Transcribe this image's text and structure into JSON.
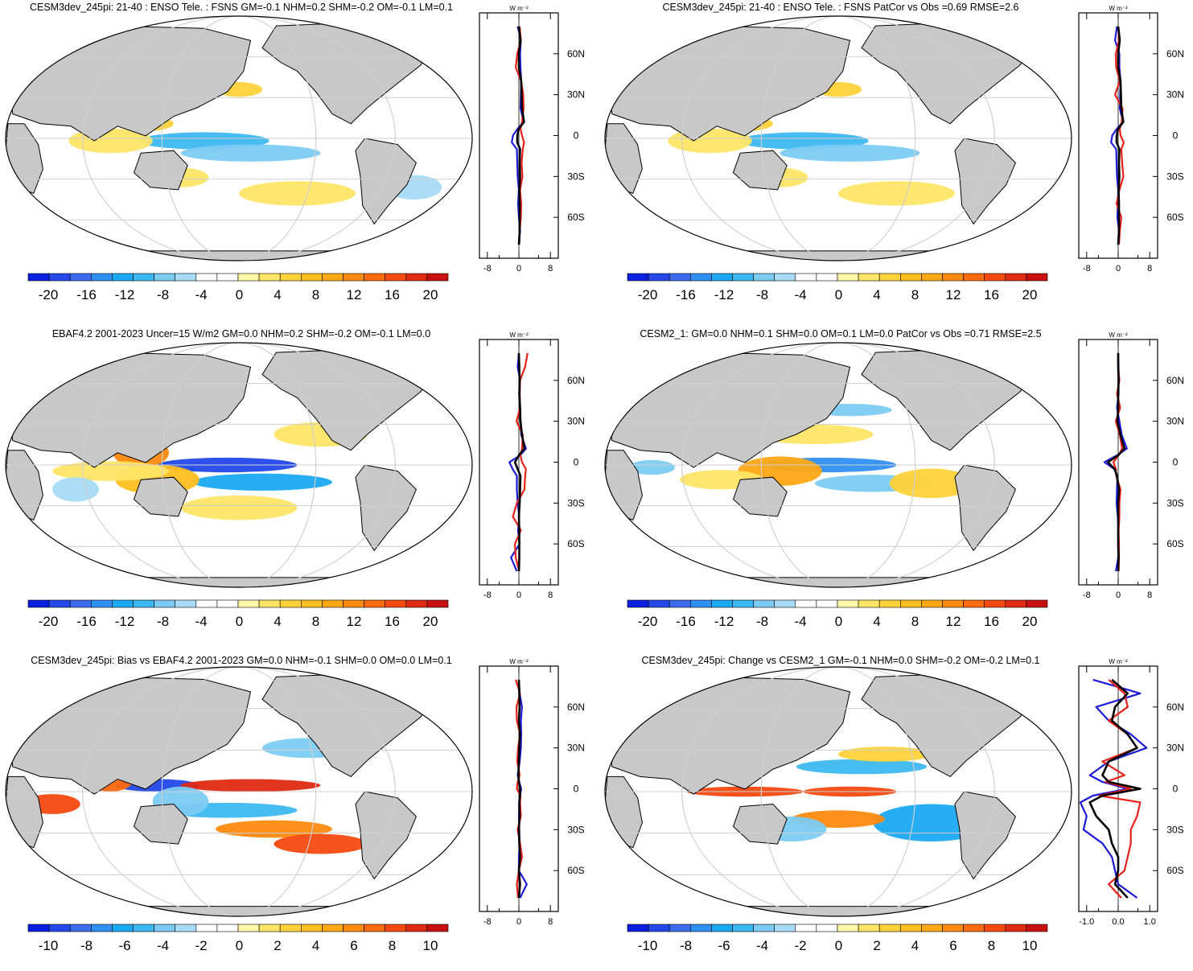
{
  "colors": {
    "land": "#c8c8c8",
    "ocean": "#ffffff",
    "coast": "#000000",
    "grid": "#cfcfcf",
    "series_blue": "#1b1bd8",
    "series_red": "#e8201a",
    "series_black": "#000000",
    "colorbar": [
      "#0a1fe0",
      "#2448ea",
      "#3c6cee",
      "#2f8ff2",
      "#1aa9f2",
      "#3cb8f0",
      "#7ccbf2",
      "#a8dbf5",
      "#ffffff",
      "#ffffff",
      "#fff8a8",
      "#ffe566",
      "#ffd23a",
      "#ffbf1f",
      "#ffa814",
      "#ff8a10",
      "#ff6a0e",
      "#f54a10",
      "#e02a12",
      "#c81010"
    ]
  },
  "panels": [
    {
      "id": "p1",
      "title": "CESM3dev_245pi: 21-40 : ENSO Tele. : FSNS GM=-0.1 NHM=0.2 SHM=-0.2 OM=-0.1 LM=0.1",
      "colorbar_labels": [
        "-20",
        "-16",
        "-12",
        "-8",
        "-4",
        "0",
        "4",
        "8",
        "12",
        "16",
        "20"
      ],
      "chart_data": {
        "type": "line",
        "unit_label": "W m⁻²",
        "xlim": [
          -10,
          10
        ],
        "x_tick_labels": [
          "-8",
          "0",
          "8"
        ],
        "lat_labels": [
          "60N",
          "30N",
          "0",
          "30S",
          "60S"
        ],
        "lat_label_values": [
          60,
          30,
          0,
          -30,
          -60
        ],
        "lat": [
          -80,
          -70,
          -60,
          -50,
          -40,
          -30,
          -20,
          -10,
          -5,
          0,
          5,
          10,
          20,
          30,
          40,
          50,
          60,
          70,
          80
        ],
        "series": [
          {
            "color": "blue",
            "values": [
              0,
              0.3,
              0,
              -0.2,
              0,
              -0.3,
              -0.4,
              -0.5,
              -1.8,
              -1.5,
              -0.3,
              1.2,
              0.4,
              0.5,
              0.6,
              0.4,
              0.3,
              0.5,
              -0.3
            ]
          },
          {
            "color": "red",
            "values": [
              0.1,
              0.2,
              0.5,
              0.6,
              0.3,
              0.9,
              0.7,
              1.0,
              1.3,
              0.8,
              0.4,
              0.8,
              1.2,
              1.1,
              0.6,
              -0.8,
              -0.4,
              0.5,
              0.2
            ]
          },
          {
            "color": "black",
            "values": [
              0,
              0.2,
              0.2,
              0.2,
              0.1,
              0.3,
              0.2,
              0.3,
              -0.4,
              -0.4,
              0,
              1.3,
              0.8,
              0.7,
              0.6,
              0,
              0,
              0.4,
              0
            ]
          }
        ]
      }
    },
    {
      "id": "p2",
      "title": "CESM3dev_245pi: 21-40 : ENSO Tele. : FSNS PatCor vs Obs =0.69 RMSE=2.6",
      "colorbar_labels": [
        "-20",
        "-16",
        "-12",
        "-8",
        "-4",
        "0",
        "4",
        "8",
        "12",
        "16",
        "20"
      ],
      "chart_data": {
        "type": "line",
        "unit_label": "W m⁻²",
        "xlim": [
          -10,
          10
        ],
        "x_tick_labels": [
          "-8",
          "0",
          "8"
        ],
        "lat_labels": [
          "60N",
          "30N",
          "0",
          "30S",
          "60S"
        ],
        "lat_label_values": [
          60,
          30,
          0,
          -30,
          -60
        ],
        "lat": [
          -80,
          -70,
          -60,
          -50,
          -40,
          -30,
          -20,
          -10,
          -5,
          0,
          5,
          10,
          20,
          30,
          40,
          50,
          60,
          70,
          80
        ],
        "series": [
          {
            "color": "blue",
            "values": [
              0,
              0.2,
              -0.2,
              -0.1,
              0,
              -0.3,
              -0.4,
              -0.5,
              -1.8,
              -1.5,
              -0.3,
              1.2,
              0.4,
              0.5,
              0.6,
              0.3,
              0.3,
              -0.8,
              -0.3
            ]
          },
          {
            "color": "red",
            "values": [
              0.2,
              0.4,
              0.8,
              -0.4,
              0.3,
              1.3,
              1.0,
              0.8,
              1.4,
              0.6,
              0.4,
              0.9,
              1.1,
              -0.8,
              0.4,
              -0.5,
              -0.6,
              0.2,
              0
            ]
          },
          {
            "color": "black",
            "values": [
              0,
              0.2,
              0.2,
              0.2,
              0.1,
              0.3,
              0.2,
              0.3,
              -0.4,
              -0.4,
              0,
              1.3,
              0.8,
              0.7,
              0.6,
              0,
              0,
              0.4,
              0
            ]
          }
        ]
      }
    },
    {
      "id": "p3",
      "title": "EBAF4.2 2001-2023 Uncer=15 W/m2 GM=0.0 NHM=0.2 SHM=-0.2 OM=-0.1 LM=0.0",
      "colorbar_labels": [
        "-20",
        "-16",
        "-12",
        "-8",
        "-4",
        "0",
        "4",
        "8",
        "12",
        "16",
        "20"
      ],
      "chart_data": {
        "type": "line",
        "unit_label": "W m⁻²",
        "xlim": [
          -10,
          10
        ],
        "x_tick_labels": [
          "-8",
          "0",
          "8"
        ],
        "lat_labels": [
          "60N",
          "30N",
          "0",
          "30S",
          "60S"
        ],
        "lat_label_values": [
          60,
          30,
          0,
          -30,
          -60
        ],
        "lat": [
          -80,
          -70,
          -60,
          -50,
          -40,
          -30,
          -20,
          -10,
          -5,
          0,
          5,
          10,
          20,
          30,
          40,
          50,
          60,
          70,
          80
        ],
        "series": [
          {
            "color": "blue",
            "values": [
              -0.5,
              -2.0,
              0.2,
              -0.2,
              0.1,
              -0.3,
              -0.5,
              -0.5,
              -1.6,
              -2.4,
              0.3,
              1.8,
              0.6,
              0.4,
              0.3,
              0.2,
              0.3,
              -0.3,
              0
            ]
          },
          {
            "color": "red",
            "values": [
              0.1,
              -0.8,
              -1.0,
              0.5,
              -1.5,
              -0.5,
              1.4,
              1.6,
              1.8,
              0.8,
              0.4,
              0.8,
              1.0,
              -0.6,
              0.3,
              0.2,
              0.3,
              1.6,
              2.2
            ]
          },
          {
            "color": "black",
            "values": [
              0,
              0.1,
              0.1,
              0.1,
              0,
              0.2,
              0.3,
              0.4,
              -0.3,
              -1.0,
              0,
              1.4,
              0.8,
              0.4,
              0.3,
              0.1,
              0.2,
              0.1,
              0
            ]
          }
        ]
      }
    },
    {
      "id": "p4",
      "title": "CESM2_1: GM=0.0 NHM=0.1 SHM=0.0 OM=0.1 LM=0.0 PatCor vs Obs =0.71 RMSE=2.5",
      "colorbar_labels": [
        "-20",
        "-16",
        "-12",
        "-8",
        "-4",
        "0",
        "4",
        "8",
        "12",
        "16",
        "20"
      ],
      "chart_data": {
        "type": "line",
        "unit_label": "W m⁻²",
        "xlim": [
          -10,
          10
        ],
        "x_tick_labels": [
          "-8",
          "0",
          "8"
        ],
        "lat_labels": [
          "60N",
          "30N",
          "0",
          "30S",
          "60S"
        ],
        "lat_label_values": [
          60,
          30,
          0,
          -30,
          -60
        ],
        "lat": [
          -80,
          -70,
          -60,
          -50,
          -40,
          -30,
          -20,
          -10,
          -5,
          0,
          5,
          10,
          20,
          30,
          40,
          50,
          60,
          70,
          80
        ],
        "series": [
          {
            "color": "blue",
            "values": [
              -0.6,
              0,
              0,
              0.1,
              -0.1,
              -0.4,
              -0.3,
              -0.2,
              -1.0,
              -3.5,
              -0.3,
              2.2,
              0.9,
              0.3,
              -0.3,
              0.1,
              0.1,
              0.1,
              0
            ]
          },
          {
            "color": "red",
            "values": [
              0.1,
              0.2,
              0.2,
              0.1,
              0.3,
              0.3,
              0.6,
              -0.5,
              -0.6,
              -1.2,
              0.1,
              1.0,
              0.4,
              -0.6,
              0.5,
              -0.3,
              0.3,
              0,
              0
            ]
          },
          {
            "color": "black",
            "values": [
              0,
              0.1,
              0,
              0,
              0,
              0,
              0.2,
              -0.3,
              -0.9,
              -2.6,
              0,
              1.6,
              0.6,
              -0.2,
              0,
              0,
              0.1,
              0,
              0
            ]
          }
        ]
      }
    },
    {
      "id": "p5",
      "title": "CESM3dev_245pi: Bias vs EBAF4.2 2001-2023 GM=0.0 NHM=-0.1 SHM=0.0 OM=0.0 LM=0.1",
      "colorbar_labels": [
        "-10",
        "-8",
        "-6",
        "-4",
        "-2",
        "0",
        "2",
        "4",
        "6",
        "8",
        "10"
      ],
      "chart_data": {
        "type": "line",
        "unit_label": "W m⁻²",
        "xlim": [
          -10,
          10
        ],
        "x_tick_labels": [
          "-8",
          "0",
          "8"
        ],
        "lat_labels": [
          "60N",
          "30N",
          "0",
          "30S",
          "60S"
        ],
        "lat_label_values": [
          60,
          30,
          0,
          -30,
          -60
        ],
        "lat": [
          -80,
          -70,
          -60,
          -50,
          -40,
          -30,
          -20,
          -10,
          -5,
          0,
          5,
          10,
          20,
          30,
          40,
          50,
          60,
          70,
          80
        ],
        "series": [
          {
            "color": "blue",
            "values": [
              0.3,
              2.0,
              0,
              0,
              0.2,
              0.1,
              0,
              0.1,
              0.3,
              0.6,
              0.1,
              -0.3,
              0.2,
              0.5,
              0.6,
              0.5,
              0.8,
              0.2,
              0
            ]
          },
          {
            "color": "red",
            "values": [
              -0.2,
              -0.5,
              0,
              0.8,
              0.3,
              -0.3,
              0.5,
              0.3,
              0.4,
              -0.5,
              -0.3,
              0.2,
              -0.4,
              -0.2,
              0.3,
              -0.5,
              -0.6,
              0.3,
              -0.8
            ]
          },
          {
            "color": "black",
            "values": [
              0,
              0.3,
              0,
              0.3,
              0.1,
              0,
              0.2,
              0.1,
              0.3,
              0.3,
              0,
              -0.1,
              0,
              0.1,
              0.3,
              0,
              0.2,
              0.1,
              0
            ]
          }
        ]
      }
    },
    {
      "id": "p6",
      "title": "CESM3dev_245pi: Change vs CESM2_1 GM=-0.1 NHM=0.0 SHM=-0.2 OM=-0.2 LM=0.1",
      "colorbar_labels": [
        "-10",
        "-8",
        "-6",
        "-4",
        "-2",
        "0",
        "2",
        "4",
        "6",
        "8",
        "10"
      ],
      "chart_data": {
        "type": "line",
        "unit_label": "W m⁻²",
        "xlim": [
          -1.25,
          1.25
        ],
        "x_tick_labels": [
          "-1.0",
          "0.0",
          "1.0"
        ],
        "lat_labels": [
          "60N",
          "30N",
          "0",
          "30S",
          "60S"
        ],
        "lat_label_values": [
          60,
          30,
          0,
          -30,
          -60
        ],
        "lat": [
          -80,
          -70,
          -60,
          -50,
          -40,
          -30,
          -20,
          -10,
          -5,
          0,
          5,
          10,
          20,
          30,
          40,
          50,
          60,
          70,
          80
        ],
        "series": [
          {
            "color": "blue",
            "values": [
              0.6,
              0,
              -0.1,
              -0.2,
              -0.5,
              -1.1,
              -1.0,
              -1.2,
              -0.8,
              0.3,
              -0.5,
              -0.9,
              -0.3,
              0.9,
              0.4,
              -0.3,
              -0.7,
              0.7,
              -0.8
            ]
          },
          {
            "color": "red",
            "values": [
              0.1,
              -0.3,
              0.2,
              0.3,
              0.4,
              0.4,
              0.6,
              0.7,
              -0.6,
              0.4,
              -0.4,
              0.2,
              -0.5,
              0.6,
              0.3,
              -0.3,
              0.3,
              0.2,
              -0.3
            ]
          },
          {
            "color": "black",
            "values": [
              0.3,
              -0.1,
              0,
              0,
              -0.2,
              -0.3,
              -0.7,
              -0.9,
              -0.5,
              0.7,
              -0.3,
              -0.5,
              -0.3,
              0.6,
              0.3,
              -0.2,
              -0.1,
              0.3,
              -0.2
            ]
          }
        ]
      }
    }
  ]
}
